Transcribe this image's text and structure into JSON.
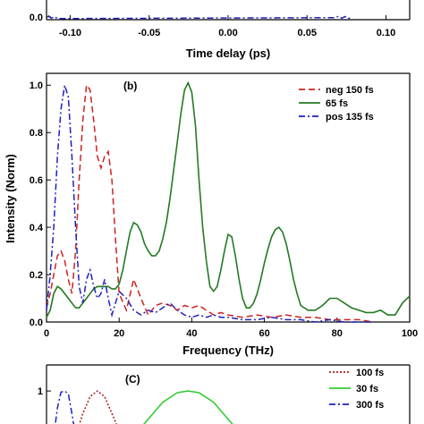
{
  "chart_data": [
    {
      "type": "line",
      "panel": "top",
      "xlabel": "Time delay (ps)",
      "ylabel": "",
      "xlim": [
        -0.115,
        0.115
      ],
      "xticks": [
        -0.1,
        -0.05,
        0.0,
        0.05,
        0.1
      ],
      "xtick_labels": [
        "-0.10",
        "-0.05",
        "0.00",
        "0.05",
        "0.10"
      ],
      "yticks": [
        0.0
      ],
      "ytick_labels": [
        "0.0"
      ],
      "series": [
        {
          "style": "dash-dot",
          "color": "#1f1fbf",
          "x": [
            -0.114,
            -0.112,
            -0.11,
            -0.108,
            0.068,
            0.07,
            0.072,
            0.074,
            0.076,
            0.078
          ],
          "y": [
            0.15,
            0.02,
            0.1,
            0.0,
            0.05,
            0.12,
            0.02,
            0.1,
            0.0,
            0.06
          ]
        }
      ]
    },
    {
      "type": "line",
      "panel": "b",
      "label": "(b)",
      "xlabel": "Frequency (THz)",
      "ylabel": "Intensity (Norm)",
      "xlim": [
        0,
        100
      ],
      "ylim": [
        0,
        1.05
      ],
      "xticks": [
        0,
        20,
        40,
        60,
        80,
        100
      ],
      "xtick_labels": [
        "0",
        "20",
        "40",
        "60",
        "80",
        "100"
      ],
      "yticks": [
        0.0,
        0.2,
        0.4,
        0.6,
        0.8,
        1.0
      ],
      "ytick_labels": [
        "0.0",
        "0.2",
        "0.4",
        "0.6",
        "0.8",
        "1.0"
      ],
      "legend_position": "top-right",
      "series": [
        {
          "name": "neg 150 fs",
          "style": "dash",
          "color": "#cc2222",
          "x": [
            0,
            1,
            2,
            3,
            4,
            5,
            6,
            7,
            8,
            9,
            10,
            11,
            12,
            13,
            14,
            15,
            16,
            17,
            18,
            19,
            20,
            22,
            24,
            26,
            28,
            30,
            32,
            34,
            36,
            38,
            40,
            42,
            44,
            46,
            48,
            50,
            54,
            58,
            62,
            66,
            70,
            74,
            78,
            82,
            86,
            90
          ],
          "y": [
            0.06,
            0.12,
            0.2,
            0.28,
            0.3,
            0.26,
            0.18,
            0.12,
            0.3,
            0.6,
            0.85,
            1.0,
            0.98,
            0.85,
            0.7,
            0.65,
            0.7,
            0.72,
            0.6,
            0.35,
            0.12,
            0.05,
            0.18,
            0.1,
            0.03,
            0.07,
            0.08,
            0.07,
            0.05,
            0.07,
            0.06,
            0.07,
            0.05,
            0.03,
            0.04,
            0.03,
            0.02,
            0.03,
            0.02,
            0.03,
            0.02,
            0.02,
            0.01,
            0.01,
            0.01,
            0.0
          ]
        },
        {
          "name": "65 fs",
          "style": "solid",
          "color": "#227a22",
          "x": [
            0,
            1,
            2,
            3,
            4,
            5,
            6,
            7,
            8,
            9,
            10,
            11,
            12,
            13,
            14,
            15,
            16,
            17,
            18,
            19,
            20,
            21,
            22,
            23,
            24,
            25,
            26,
            27,
            28,
            29,
            30,
            31,
            32,
            33,
            34,
            35,
            36,
            37,
            38,
            39,
            40,
            41,
            42,
            43,
            44,
            45,
            46,
            47,
            48,
            49,
            50,
            51,
            52,
            53,
            54,
            55,
            56,
            57,
            58,
            59,
            60,
            61,
            62,
            63,
            64,
            65,
            66,
            67,
            68,
            69,
            70,
            72,
            74,
            76,
            78,
            80,
            82,
            84,
            86,
            88,
            90,
            92,
            94,
            96,
            98,
            100
          ],
          "y": [
            0.02,
            0.05,
            0.12,
            0.15,
            0.14,
            0.12,
            0.1,
            0.08,
            0.06,
            0.06,
            0.08,
            0.1,
            0.12,
            0.14,
            0.15,
            0.15,
            0.15,
            0.15,
            0.14,
            0.14,
            0.16,
            0.22,
            0.3,
            0.38,
            0.42,
            0.41,
            0.38,
            0.33,
            0.3,
            0.28,
            0.28,
            0.3,
            0.35,
            0.42,
            0.52,
            0.64,
            0.76,
            0.88,
            0.98,
            1.01,
            0.97,
            0.83,
            0.6,
            0.4,
            0.26,
            0.15,
            0.13,
            0.15,
            0.22,
            0.3,
            0.37,
            0.36,
            0.28,
            0.18,
            0.1,
            0.06,
            0.06,
            0.08,
            0.12,
            0.18,
            0.25,
            0.31,
            0.36,
            0.39,
            0.4,
            0.38,
            0.33,
            0.26,
            0.18,
            0.12,
            0.07,
            0.05,
            0.05,
            0.07,
            0.1,
            0.1,
            0.08,
            0.06,
            0.05,
            0.04,
            0.04,
            0.05,
            0.03,
            0.03,
            0.08,
            0.11
          ]
        },
        {
          "name": "pos 135 fs",
          "style": "dash-dot",
          "color": "#1f1fbf",
          "x": [
            0,
            1,
            2,
            3,
            4,
            5,
            6,
            7,
            8,
            9,
            10,
            11,
            12,
            13,
            14,
            15,
            16,
            17,
            18,
            19,
            20,
            22,
            24,
            26,
            28,
            30,
            32,
            34,
            36,
            38,
            40,
            42,
            44,
            46,
            48,
            50,
            54,
            58,
            62,
            66,
            70,
            74,
            78,
            82,
            86,
            90
          ],
          "y": [
            0.05,
            0.2,
            0.4,
            0.7,
            0.9,
            1.0,
            0.95,
            0.7,
            0.4,
            0.15,
            0.08,
            0.18,
            0.22,
            0.15,
            0.1,
            0.12,
            0.18,
            0.1,
            0.03,
            0.08,
            0.13,
            0.1,
            0.05,
            0.03,
            0.05,
            0.04,
            0.06,
            0.08,
            0.05,
            0.03,
            0.02,
            0.03,
            0.02,
            0.03,
            0.02,
            0.02,
            0.01,
            0.01,
            0.02,
            0.01,
            0.01,
            0.0,
            0.01,
            0.0,
            0.0,
            0.0
          ]
        }
      ]
    },
    {
      "type": "line",
      "panel": "c",
      "label": "(C)",
      "xlim": [
        0,
        100
      ],
      "ylim": [
        0,
        1.05
      ],
      "yticks": [
        1
      ],
      "ytick_labels": [
        "1"
      ],
      "legend_position": "top-right",
      "series": [
        {
          "name": "100 fs",
          "style": "dot",
          "color": "#aa1a1a",
          "x": [
            8,
            10,
            12,
            14,
            16,
            18,
            20,
            22
          ],
          "y": [
            0.2,
            0.6,
            0.9,
            1.0,
            0.9,
            0.6,
            0.3,
            0.1
          ]
        },
        {
          "name": "30 fs",
          "style": "solid",
          "color": "#33cc33",
          "x": [
            24,
            28,
            32,
            36,
            39,
            42,
            46,
            50,
            54
          ],
          "y": [
            0.2,
            0.5,
            0.8,
            0.97,
            1.0,
            0.97,
            0.8,
            0.5,
            0.2
          ]
        },
        {
          "name": "300 fs",
          "style": "dash-dot",
          "color": "#1f1fbf",
          "x": [
            2,
            3,
            4,
            5,
            6,
            7,
            8
          ],
          "y": [
            0.2,
            0.7,
            0.98,
            1.0,
            0.95,
            0.6,
            0.2
          ]
        }
      ]
    }
  ]
}
